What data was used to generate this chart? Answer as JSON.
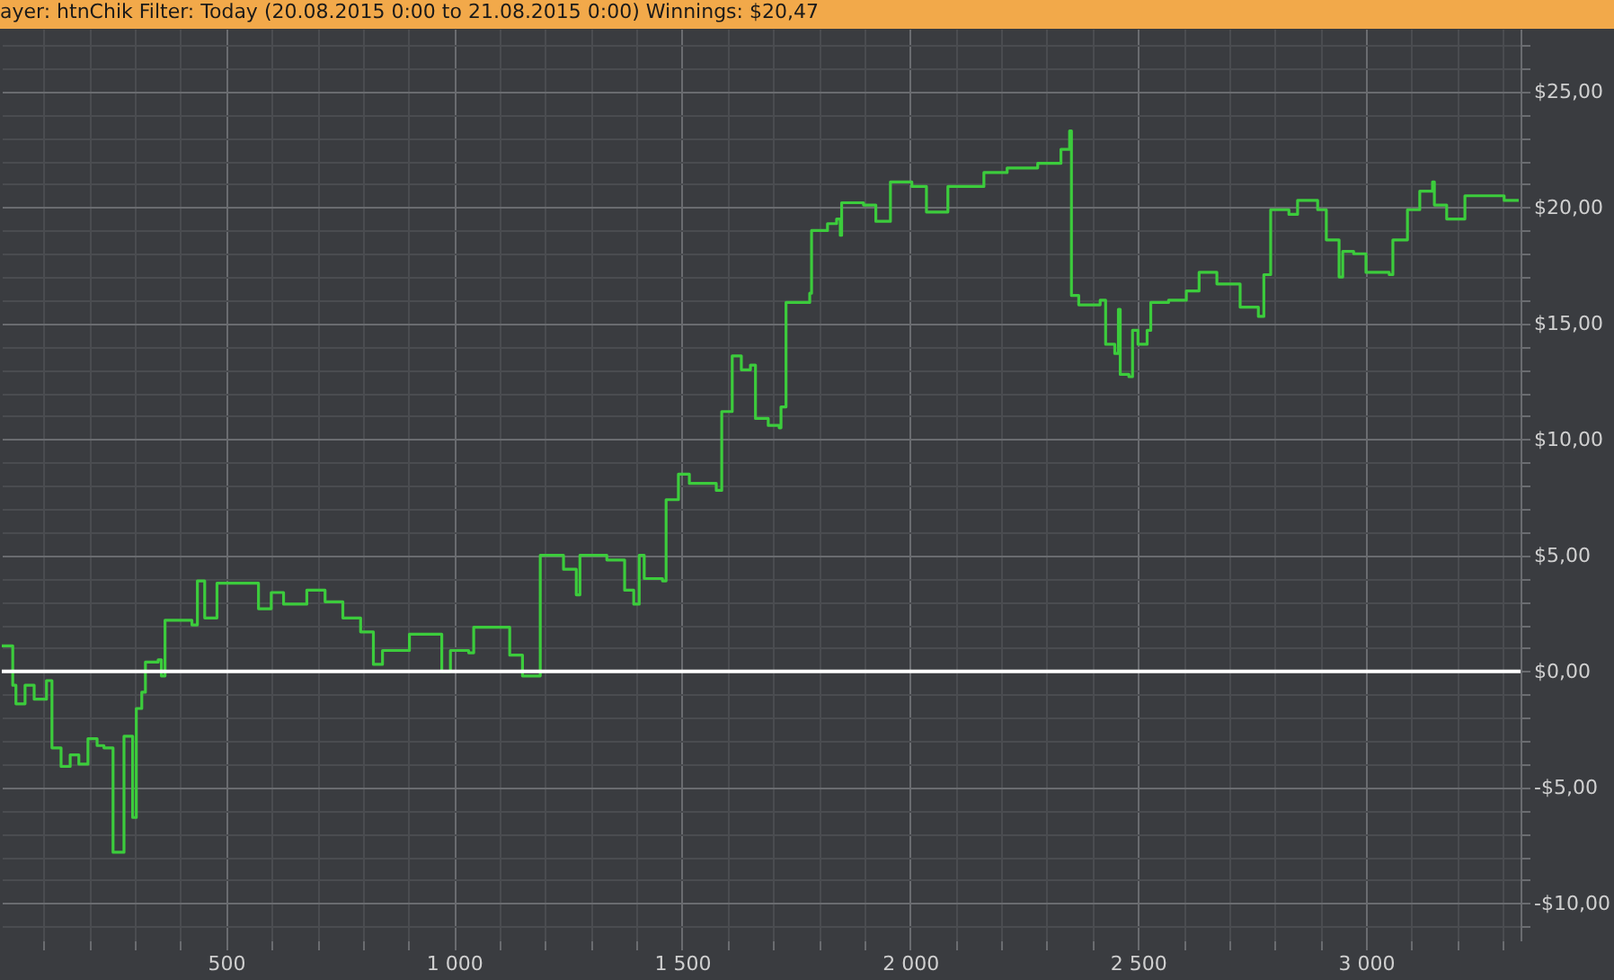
{
  "chart_data": {
    "type": "step",
    "title": "ayer:  htnChik  Filter:  Today (20.08.2015 0:00 to 21.08.2015 0:00)  Winnings:  $20,47",
    "xlim": [
      8,
      3339
    ],
    "xticks": [
      {
        "value": 100,
        "label": null
      },
      {
        "value": 200,
        "label": null
      },
      {
        "value": 300,
        "label": null
      },
      {
        "value": 400,
        "label": null
      },
      {
        "value": 500,
        "label": "500"
      },
      {
        "value": 600,
        "label": null
      },
      {
        "value": 700,
        "label": null
      },
      {
        "value": 800,
        "label": null
      },
      {
        "value": 900,
        "label": null
      },
      {
        "value": 1000,
        "label": "1 000"
      },
      {
        "value": 1100,
        "label": null
      },
      {
        "value": 1200,
        "label": null
      },
      {
        "value": 1300,
        "label": null
      },
      {
        "value": 1400,
        "label": null
      },
      {
        "value": 1500,
        "label": "1 500"
      },
      {
        "value": 1600,
        "label": null
      },
      {
        "value": 1700,
        "label": null
      },
      {
        "value": 1800,
        "label": null
      },
      {
        "value": 1900,
        "label": null
      },
      {
        "value": 2000,
        "label": "2 000"
      },
      {
        "value": 2100,
        "label": null
      },
      {
        "value": 2200,
        "label": null
      },
      {
        "value": 2300,
        "label": null
      },
      {
        "value": 2400,
        "label": null
      },
      {
        "value": 2500,
        "label": "2 500"
      },
      {
        "value": 2600,
        "label": null
      },
      {
        "value": 2700,
        "label": null
      },
      {
        "value": 2800,
        "label": null
      },
      {
        "value": 2900,
        "label": null
      },
      {
        "value": 3000,
        "label": "3 000"
      },
      {
        "value": 3100,
        "label": null
      },
      {
        "value": 3200,
        "label": null
      },
      {
        "value": 3300,
        "label": null
      }
    ],
    "ylim": [
      -11.6,
      27.7
    ],
    "yticks": [
      {
        "value": -11,
        "label": null
      },
      {
        "value": -10,
        "label": "-$10,00"
      },
      {
        "value": -9,
        "label": null
      },
      {
        "value": -8,
        "label": null
      },
      {
        "value": -7,
        "label": null
      },
      {
        "value": -6,
        "label": null
      },
      {
        "value": -5,
        "label": "-$5,00"
      },
      {
        "value": -4,
        "label": null
      },
      {
        "value": -3,
        "label": null
      },
      {
        "value": -2,
        "label": null
      },
      {
        "value": -1,
        "label": null
      },
      {
        "value": 0,
        "label": "$0,00"
      },
      {
        "value": 1,
        "label": null
      },
      {
        "value": 2,
        "label": null
      },
      {
        "value": 3,
        "label": null
      },
      {
        "value": 4,
        "label": null
      },
      {
        "value": 5,
        "label": "$5,00"
      },
      {
        "value": 6,
        "label": null
      },
      {
        "value": 7,
        "label": null
      },
      {
        "value": 8,
        "label": null
      },
      {
        "value": 9,
        "label": null
      },
      {
        "value": 10,
        "label": "$10,00"
      },
      {
        "value": 11,
        "label": null
      },
      {
        "value": 12,
        "label": null
      },
      {
        "value": 13,
        "label": null
      },
      {
        "value": 14,
        "label": null
      },
      {
        "value": 15,
        "label": "$15,00"
      },
      {
        "value": 16,
        "label": null
      },
      {
        "value": 17,
        "label": null
      },
      {
        "value": 18,
        "label": null
      },
      {
        "value": 19,
        "label": null
      },
      {
        "value": 20,
        "label": "$20,00"
      },
      {
        "value": 21,
        "label": null
      },
      {
        "value": 22,
        "label": null
      },
      {
        "value": 23,
        "label": null
      },
      {
        "value": 24,
        "label": null
      },
      {
        "value": 25,
        "label": "$25,00"
      },
      {
        "value": 26,
        "label": null
      },
      {
        "value": 27,
        "label": null
      }
    ],
    "grid": true,
    "ref_lines": [
      {
        "axis": "y",
        "value": 0,
        "label": null,
        "color": "#ffffff"
      }
    ],
    "series": [
      {
        "color": "#3ccc3c",
        "x": [
          8,
          28,
          32,
          39,
          59,
          79,
          106,
          118,
          138,
          158,
          177,
          197,
          217,
          232,
          252,
          272,
          276,
          291,
          295,
          303,
          315,
          323,
          351,
          358,
          366,
          402,
          425,
          437,
          453,
          480,
          532,
          571,
          599,
          626,
          677,
          717,
          756,
          795,
          823,
          843,
          902,
          953,
          973,
          992,
          1032,
          1043,
          1099,
          1122,
          1150,
          1181,
          1189,
          1240,
          1268,
          1276,
          1335,
          1374,
          1394,
          1406,
          1417,
          1457,
          1465,
          1492,
          1516,
          1575,
          1587,
          1602,
          1610,
          1630,
          1650,
          1661,
          1689,
          1713,
          1717,
          1728,
          1780,
          1784,
          1819,
          1839,
          1847,
          1850,
          1898,
          1925,
          1957,
          2004,
          2036,
          2083,
          2134,
          2162,
          2213,
          2280,
          2331,
          2350,
          2354,
          2370,
          2417,
          2429,
          2449,
          2457,
          2461,
          2480,
          2488,
          2500,
          2520,
          2528,
          2567,
          2606,
          2634,
          2673,
          2717,
          2724,
          2756,
          2764,
          2776,
          2791,
          2831,
          2850,
          2894,
          2913,
          2941,
          2949,
          2973,
          3000,
          3028,
          3051,
          3059,
          3091,
          3118,
          3146,
          3150,
          3177,
          3217,
          3264,
          3303,
          3335
        ],
        "values": [
          1.1,
          1.1,
          -0.6,
          -1.4,
          -0.6,
          -1.2,
          -0.4,
          -3.3,
          -4.1,
          -3.6,
          -4.0,
          -2.9,
          -3.2,
          -3.3,
          -7.8,
          -7.8,
          -2.8,
          -2.8,
          -6.3,
          -1.6,
          -0.9,
          0.4,
          0.5,
          -0.2,
          2.2,
          2.2,
          2.0,
          3.9,
          2.3,
          3.8,
          3.8,
          2.7,
          3.4,
          2.9,
          3.5,
          3.0,
          2.3,
          1.7,
          0.3,
          0.9,
          1.6,
          1.6,
          0.0,
          0.9,
          0.8,
          1.9,
          1.9,
          0.7,
          -0.2,
          -0.2,
          5.0,
          4.4,
          3.3,
          5.0,
          4.8,
          3.5,
          2.9,
          5.0,
          4.0,
          3.9,
          7.4,
          8.5,
          8.1,
          7.8,
          11.2,
          11.2,
          13.6,
          13.0,
          13.2,
          10.9,
          10.6,
          10.5,
          11.4,
          15.9,
          16.3,
          19.0,
          19.3,
          19.5,
          18.8,
          20.2,
          20.1,
          19.4,
          21.1,
          20.9,
          19.8,
          20.9,
          20.9,
          21.5,
          21.7,
          21.9,
          22.5,
          23.3,
          16.2,
          15.8,
          16.0,
          14.1,
          13.7,
          15.6,
          12.8,
          12.7,
          14.7,
          14.1,
          14.7,
          15.9,
          16.0,
          16.4,
          17.2,
          16.7,
          16.7,
          15.7,
          15.7,
          15.3,
          17.1,
          19.9,
          19.7,
          20.3,
          19.9,
          18.6,
          17.0,
          18.1,
          18.0,
          17.2,
          17.2,
          17.1,
          18.6,
          19.9,
          20.7,
          21.1,
          20.1,
          19.5,
          20.5,
          20.5,
          20.3,
          20.3
        ]
      }
    ]
  }
}
